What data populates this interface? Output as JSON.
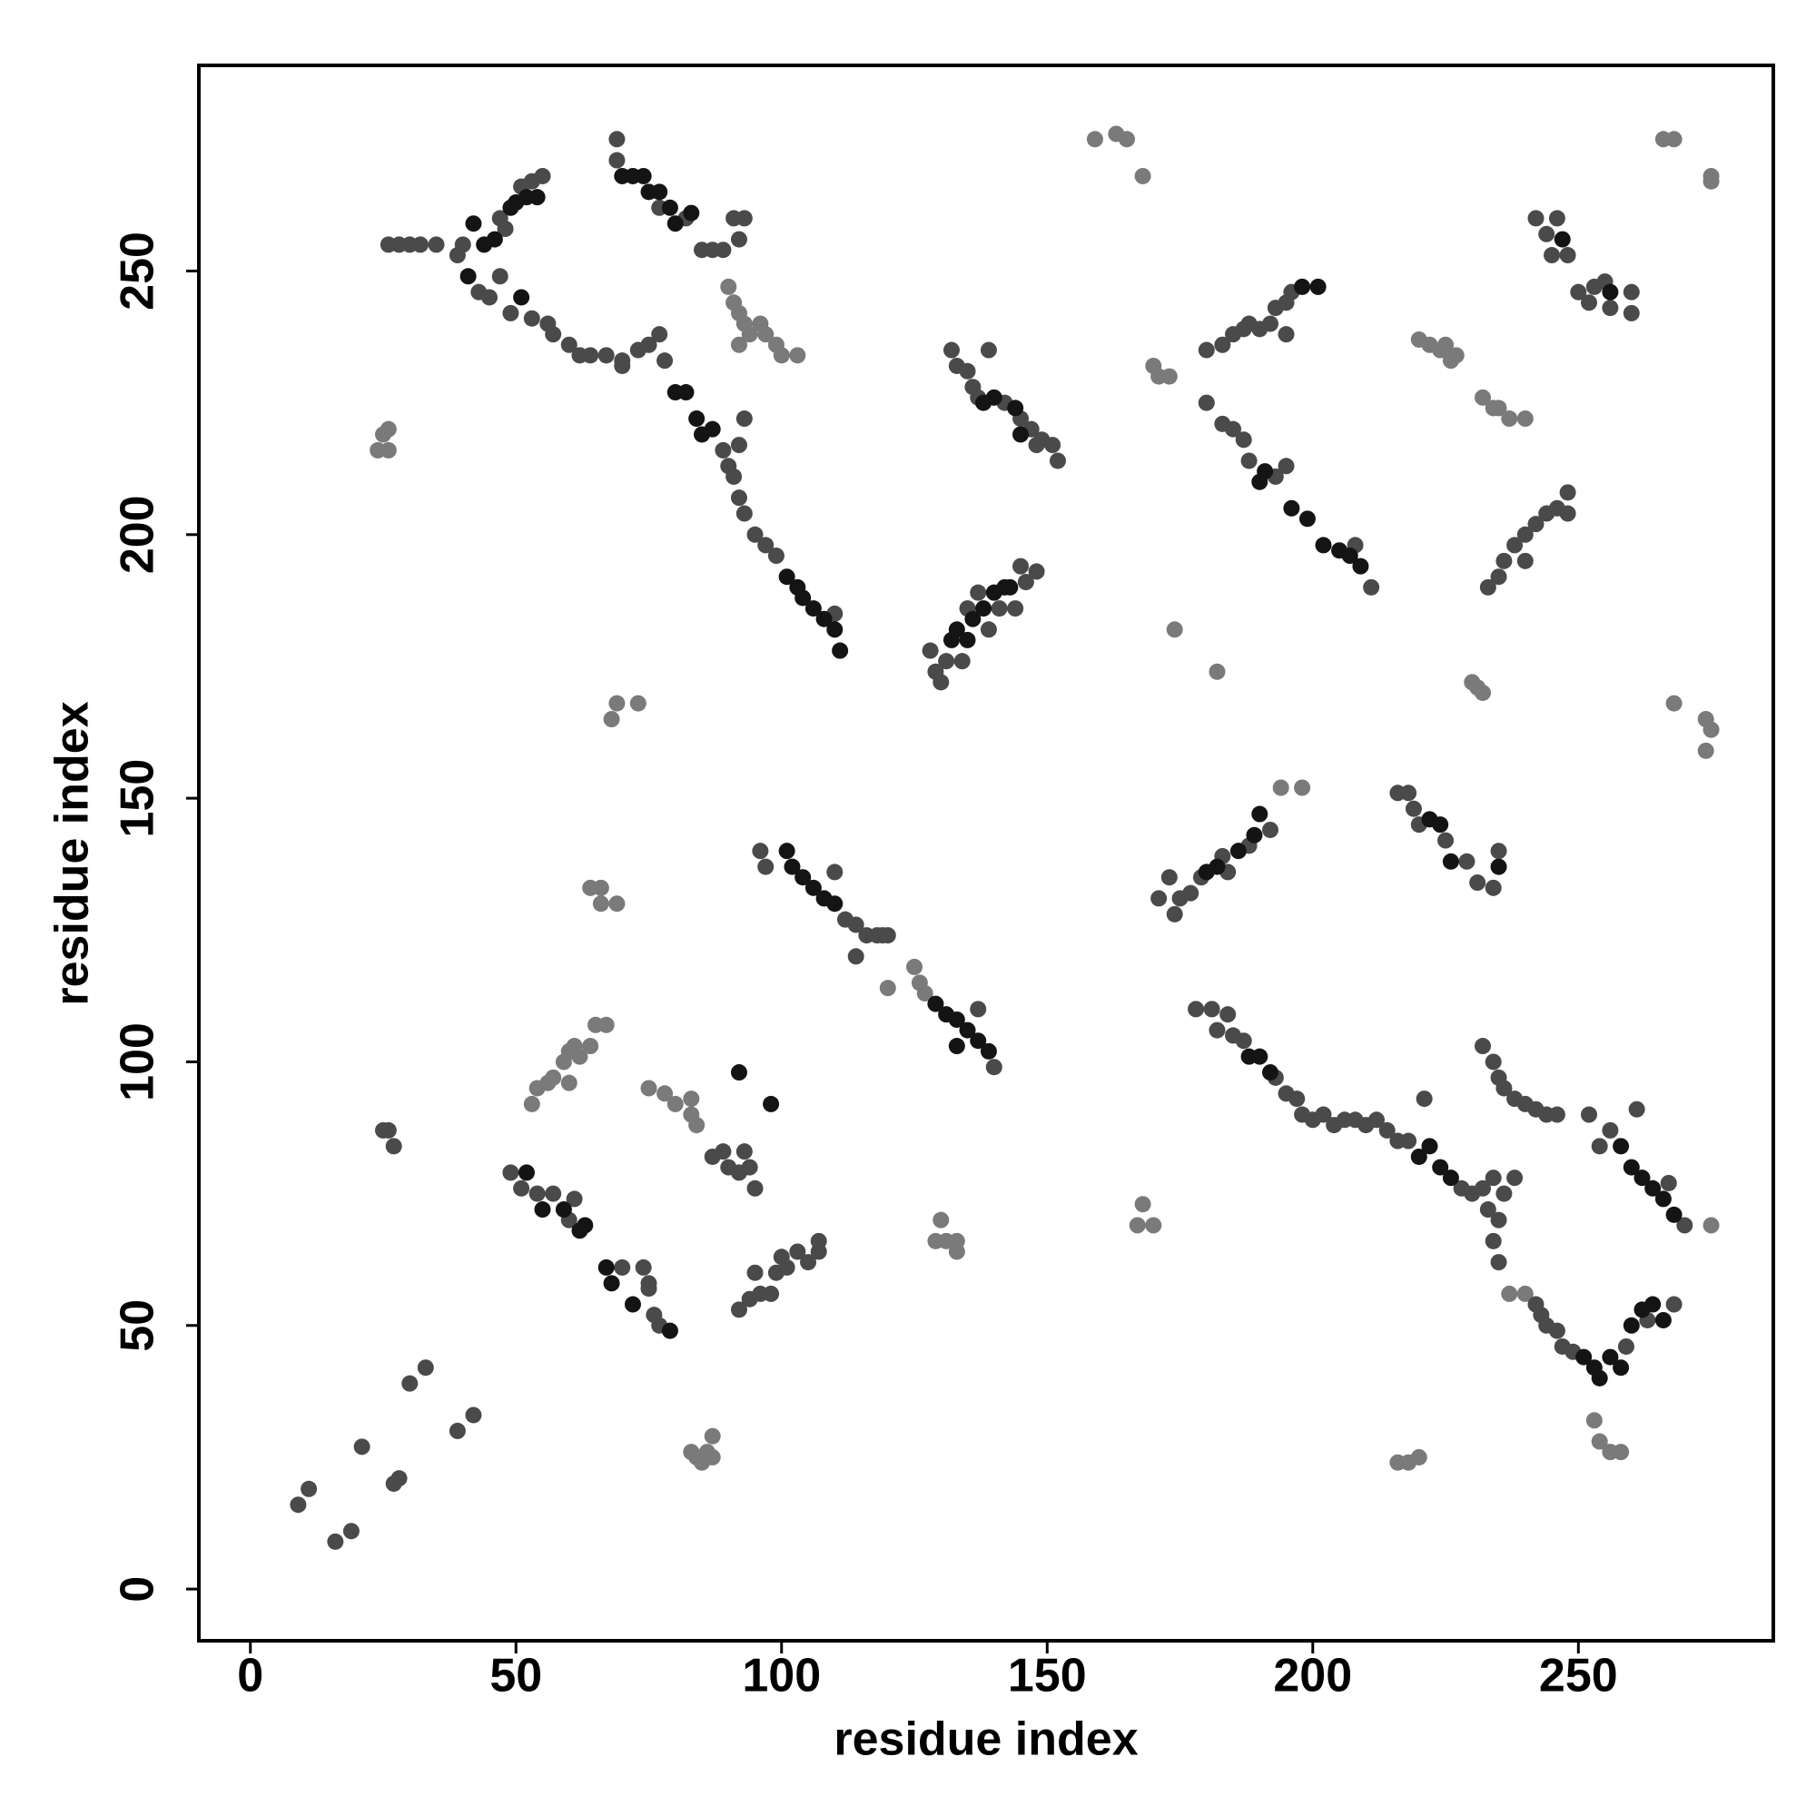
{
  "chart_data": {
    "type": "scatter",
    "xlabel": "residue index",
    "ylabel": "residue index",
    "xlim": [
      -9.7,
      286.7
    ],
    "ylim": [
      -9.8,
      289
    ],
    "xticks": [
      0,
      50,
      100,
      150,
      200,
      250
    ],
    "yticks": [
      0,
      50,
      100,
      150,
      200,
      250
    ],
    "grid": false,
    "series": [
      {
        "color": "#7a7a7a",
        "x": [
          24,
          25,
          26,
          26,
          90,
          91,
          92,
          93,
          94,
          96,
          97,
          99,
          100,
          103,
          92,
          68,
          69,
          73,
          64,
          66,
          66,
          69,
          53,
          54,
          56,
          57,
          59,
          60,
          61,
          62,
          64,
          65,
          67,
          60,
          75,
          78,
          80,
          83,
          84,
          83,
          120,
          125,
          126,
          127,
          83,
          84,
          85,
          86,
          87,
          87,
          129,
          130,
          131,
          133,
          133,
          159,
          163,
          165,
          168,
          170,
          171,
          173,
          167,
          168,
          170,
          174,
          182,
          194,
          198,
          253,
          254,
          256,
          258,
          216,
          218,
          220,
          220,
          222,
          224,
          226,
          227,
          225,
          232,
          234,
          235,
          237,
          240,
          230,
          232,
          231,
          266,
          268,
          275,
          275,
          268,
          274,
          275,
          274,
          275,
          237,
          240
        ],
        "y": [
          216,
          219,
          216,
          220,
          247,
          244,
          242,
          240,
          238,
          240,
          238,
          236,
          234,
          234,
          236,
          165,
          168,
          168,
          133,
          133,
          130,
          130,
          92,
          95,
          96,
          97,
          100,
          102,
          103,
          101,
          103,
          107,
          107,
          96,
          95,
          94,
          92,
          90,
          88,
          93,
          114,
          118,
          115,
          113,
          26,
          25,
          24,
          26,
          29,
          25,
          66,
          70,
          66,
          64,
          66,
          275,
          276,
          275,
          268,
          232,
          230,
          230,
          69,
          73,
          69,
          182,
          174,
          152,
          152,
          32,
          28,
          26,
          26,
          24,
          24,
          25,
          237,
          236,
          235,
          233,
          234,
          236,
          226,
          224,
          224,
          222,
          222,
          172,
          170,
          171,
          275,
          275,
          267,
          268,
          168,
          165,
          163,
          159,
          69,
          56,
          56
        ]
      },
      {
        "color": "#4a4a4a",
        "x": [
          9,
          11,
          16,
          19,
          21,
          27,
          28,
          30,
          33,
          39,
          42,
          25,
          26,
          27,
          26,
          28,
          30,
          32,
          35,
          39,
          40,
          47,
          48,
          51,
          53,
          55,
          43,
          45,
          47,
          49,
          53,
          56,
          57,
          60,
          62,
          64,
          67,
          70,
          69,
          69,
          77,
          82,
          85,
          87,
          89,
          91,
          92,
          93,
          70,
          73,
          75,
          77,
          78,
          89,
          90,
          91,
          92,
          93,
          95,
          97,
          99,
          110,
          93,
          92,
          96,
          97,
          112,
          114,
          116,
          118,
          119,
          120,
          114,
          110,
          140,
          137,
          49,
          51,
          54,
          57,
          60,
          61,
          70,
          74,
          75,
          76,
          77,
          75,
          92,
          94,
          95,
          96,
          98,
          99,
          100,
          101,
          103,
          105,
          107,
          107,
          87,
          89,
          90,
          92,
          93,
          94,
          95,
          128,
          129,
          130,
          131,
          134,
          135,
          137,
          139,
          141,
          144,
          145,
          146,
          148,
          132,
          133,
          135,
          136,
          137,
          139,
          142,
          145,
          147,
          149,
          151,
          152,
          148,
          171,
          173,
          174,
          175,
          177,
          179,
          183,
          184,
          188,
          192,
          216,
          218,
          219,
          220,
          225,
          229,
          231,
          234,
          235,
          178,
          181,
          182,
          184,
          185,
          187,
          193,
          195,
          197,
          198,
          200,
          202,
          204,
          206,
          208,
          210,
          212,
          214,
          216,
          218,
          228,
          230,
          221,
          232,
          233,
          234,
          235,
          236,
          238,
          234,
          235,
          242,
          243,
          244,
          246,
          247,
          249,
          259,
          263,
          268,
          232,
          234,
          235,
          236,
          238,
          240,
          242,
          244,
          246,
          252,
          254,
          256,
          261,
          270,
          267,
          180,
          183,
          185,
          187,
          188,
          193,
          195,
          208,
          211,
          180,
          183,
          185,
          187,
          188,
          190,
          192,
          193,
          195,
          196,
          195,
          233,
          235,
          236,
          238,
          240,
          242,
          244,
          246,
          248,
          240,
          248,
          242,
          244,
          246,
          248,
          250,
          252,
          253,
          255,
          256,
          260,
          260,
          245
        ],
        "y": [
          16,
          19,
          9,
          11,
          27,
          20,
          21,
          39,
          42,
          30,
          33,
          87,
          87,
          84,
          255,
          255,
          255,
          255,
          255,
          253,
          255,
          260,
          258,
          266,
          267,
          268,
          246,
          245,
          249,
          242,
          241,
          240,
          238,
          236,
          234,
          234,
          234,
          233,
          275,
          271,
          262,
          260,
          254,
          254,
          254,
          260,
          256,
          260,
          232,
          235,
          236,
          238,
          233,
          216,
          213,
          211,
          207,
          204,
          200,
          198,
          196,
          185,
          222,
          217,
          140,
          137,
          127,
          126,
          124,
          124,
          124,
          124,
          120,
          136,
          99,
          110,
          79,
          76,
          75,
          75,
          70,
          74,
          61,
          61,
          58,
          52,
          50,
          57,
          53,
          55,
          60,
          56,
          56,
          60,
          63,
          61,
          64,
          62,
          66,
          64,
          82,
          83,
          80,
          79,
          83,
          80,
          76,
          178,
          174,
          172,
          176,
          176,
          186,
          189,
          182,
          186,
          186,
          194,
          191,
          193,
          235,
          232,
          231,
          228,
          226,
          235,
          225,
          222,
          220,
          218,
          217,
          214,
          217,
          131,
          135,
          128,
          131,
          132,
          135,
          139,
          136,
          141,
          144,
          151,
          151,
          148,
          145,
          142,
          138,
          134,
          133,
          140,
          110,
          110,
          106,
          109,
          105,
          104,
          97,
          94,
          93,
          90,
          89,
          90,
          88,
          89,
          89,
          88,
          89,
          87,
          85,
          85,
          76,
          75,
          93,
          76,
          72,
          78,
          70,
          75,
          78,
          66,
          62,
          54,
          52,
          50,
          49,
          46,
          45,
          46,
          51,
          54,
          103,
          100,
          97,
          95,
          93,
          92,
          91,
          90,
          90,
          90,
          84,
          87,
          91,
          69,
          77,
          225,
          221,
          220,
          218,
          214,
          211,
          213,
          198,
          190,
          235,
          236,
          238,
          239,
          240,
          239,
          240,
          243,
          244,
          246,
          238,
          190,
          192,
          195,
          198,
          200,
          202,
          204,
          205,
          208,
          195,
          204,
          260,
          257,
          260,
          253,
          246,
          244,
          247,
          248,
          243,
          246,
          242,
          253
        ]
      },
      {
        "color": "#141414",
        "x": [
          42,
          44,
          46,
          49,
          50,
          52,
          54,
          41,
          51,
          70,
          72,
          74,
          75,
          77,
          79,
          80,
          83,
          80,
          82,
          84,
          85,
          87,
          101,
          103,
          104,
          106,
          108,
          110,
          111,
          101,
          102,
          104,
          106,
          108,
          110,
          129,
          131,
          133,
          135,
          137,
          139,
          133,
          52,
          55,
          59,
          62,
          63,
          67,
          68,
          72,
          79,
          132,
          133,
          135,
          136,
          138,
          140,
          142,
          143,
          138,
          140,
          144,
          145,
          180,
          182,
          186,
          189,
          190,
          188,
          190,
          192,
          220,
          222,
          224,
          226,
          251,
          253,
          254,
          256,
          258,
          260,
          262,
          264,
          266,
          258,
          260,
          262,
          264,
          266,
          268,
          196,
          199,
          202,
          205,
          207,
          209,
          190,
          191,
          201,
          198,
          247,
          256,
          222,
          224,
          226,
          235,
          98,
          92
        ],
        "y": [
          259,
          255,
          256,
          262,
          263,
          264,
          264,
          249,
          245,
          268,
          268,
          268,
          265,
          265,
          262,
          259,
          261,
          227,
          227,
          222,
          219,
          220,
          192,
          190,
          188,
          186,
          184,
          182,
          178,
          140,
          137,
          135,
          133,
          131,
          130,
          111,
          109,
          108,
          106,
          104,
          102,
          103,
          79,
          72,
          72,
          68,
          69,
          61,
          58,
          54,
          49,
          180,
          182,
          180,
          184,
          186,
          189,
          190,
          190,
          225,
          226,
          224,
          219,
          136,
          137,
          140,
          143,
          147,
          101,
          101,
          98,
          82,
          84,
          80,
          78,
          44,
          42,
          40,
          44,
          42,
          50,
          53,
          54,
          51,
          84,
          80,
          78,
          76,
          74,
          71,
          205,
          203,
          198,
          197,
          196,
          194,
          210,
          212,
          247,
          247,
          256,
          246,
          146,
          145,
          138,
          137,
          92,
          98
        ]
      }
    ]
  }
}
